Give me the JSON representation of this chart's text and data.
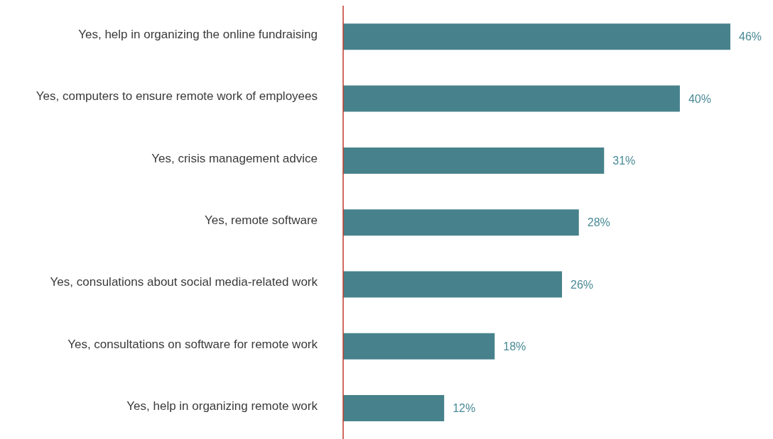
{
  "chart_data": {
    "type": "bar",
    "orientation": "horizontal",
    "categories": [
      "Yes, help in organizing the online fundraising",
      "Yes, computers to ensure remote work of employees",
      "Yes, crisis management advice",
      "Yes, remote software",
      "Yes, consulations about social media-related work",
      "Yes, consultations on software for remote work",
      "Yes, help in organizing remote work"
    ],
    "values": [
      46,
      40,
      31,
      28,
      26,
      18,
      12
    ],
    "value_labels": [
      "46%",
      "40%",
      "31%",
      "28%",
      "26%",
      "18%",
      "12%"
    ],
    "color": "#47828c"
  }
}
